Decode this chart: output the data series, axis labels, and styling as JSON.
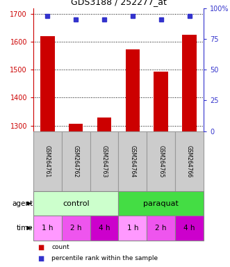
{
  "title": "GDS3188 / 252277_at",
  "samples": [
    "GSM264761",
    "GSM264762",
    "GSM264763",
    "GSM264764",
    "GSM264765",
    "GSM264766"
  ],
  "counts": [
    1620,
    1307,
    1328,
    1573,
    1493,
    1625
  ],
  "percentiles": [
    94,
    91,
    91,
    94,
    91,
    94
  ],
  "ylim_left": [
    1280,
    1720
  ],
  "ylim_right": [
    0,
    100
  ],
  "yticks_left": [
    1300,
    1400,
    1500,
    1600,
    1700
  ],
  "yticks_right": [
    0,
    25,
    50,
    75,
    100
  ],
  "bar_color": "#cc0000",
  "dot_color": "#3333cc",
  "agent_colors": [
    "#ccffcc",
    "#44dd44"
  ],
  "time_colors_1h": "#ff99ff",
  "time_colors_2h": "#ee55ee",
  "time_colors_4h": "#cc00cc",
  "sample_bg_color": "#cccccc",
  "sample_border_color": "#999999",
  "legend_count_color": "#cc0000",
  "legend_pct_color": "#3333cc",
  "grid_color": "#000000"
}
